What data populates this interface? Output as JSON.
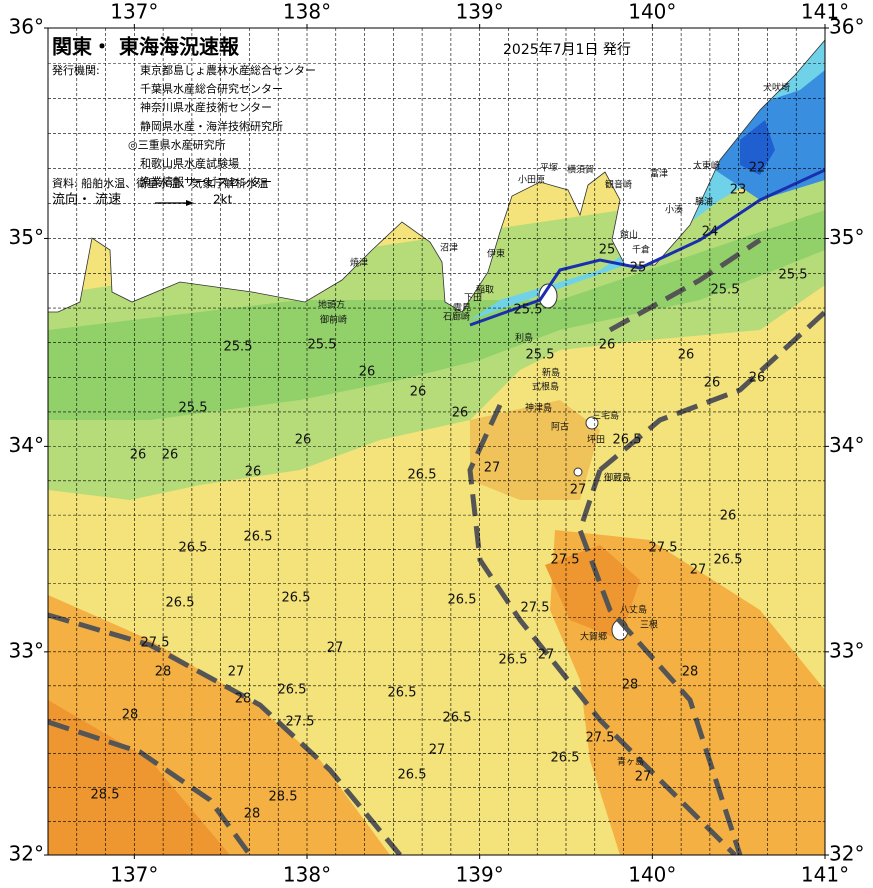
{
  "map": {
    "xlim": [
      136.5,
      141
    ],
    "ylim": [
      32,
      36
    ],
    "xticks": [
      {
        "value": 137,
        "label": "137°"
      },
      {
        "value": 138,
        "label": "138°"
      },
      {
        "value": 139,
        "label": "139°"
      },
      {
        "value": 140,
        "label": "140°"
      },
      {
        "value": 141,
        "label": "141°"
      }
    ],
    "yticks": [
      {
        "value": 32,
        "label": "32°"
      },
      {
        "value": 33,
        "label": "33°"
      },
      {
        "value": 34,
        "label": "34°"
      },
      {
        "value": 35,
        "label": "35°"
      },
      {
        "value": 36,
        "label": "36°"
      }
    ]
  },
  "header": {
    "title": "関東・ 東海海況速報",
    "date": "2025年7月1日 発行",
    "agencies_label": "発行機関:",
    "agencies": [
      "東京都島しょ農林水産総合センター",
      "千葉県水産総合研究センター",
      "神奈川県水産技術センター",
      "静岡県水産・海洋技術研究所",
      "◎三重県水産研究所",
      "和歌山県水産試験場",
      "漁業情報サービスセンター"
    ],
    "source": "資料: 船舶水温、衛星水温、気象庁解析水温",
    "flow_label": "流向・ 流速",
    "flow_scale": "2kt"
  },
  "contour_labels": [
    "25.5",
    "25.5",
    "25.5",
    "26",
    "26",
    "26",
    "26",
    "26",
    "26",
    "26",
    "26.5",
    "27",
    "26.5",
    "26.5",
    "26.5",
    "26.5",
    "26.5",
    "27.5",
    "28",
    "27",
    "28",
    "28",
    "26.5",
    "27.5",
    "26.5",
    "26.5",
    "27",
    "26.5",
    "28.5",
    "28",
    "28.5",
    "27",
    "26.5",
    "27",
    "27.5",
    "27.5",
    "27.5",
    "27",
    "26.5",
    "26",
    "28",
    "28",
    "27.5",
    "26.5",
    "27",
    "27",
    "26.5",
    "26",
    "26",
    "26",
    "26",
    "25.5",
    "25.5",
    "25",
    "25",
    "23",
    "22",
    "24",
    "25.5",
    "25.5"
  ],
  "place_names": [
    "犬吠埼",
    "太東崎",
    "勝浦",
    "小湊",
    "館山",
    "千倉",
    "富津",
    "観音崎",
    "横須賀",
    "平塚",
    "小田原",
    "伊東",
    "稲取",
    "下田",
    "雲見",
    "石廊崎",
    "沼津",
    "焼津",
    "地頭方",
    "御前崎",
    "利島",
    "新島",
    "式根島",
    "神津島",
    "三宅島",
    "阿古",
    "坪田",
    "御蔵島",
    "八丈島",
    "三根",
    "大賀郷",
    "青ヶ島"
  ]
}
